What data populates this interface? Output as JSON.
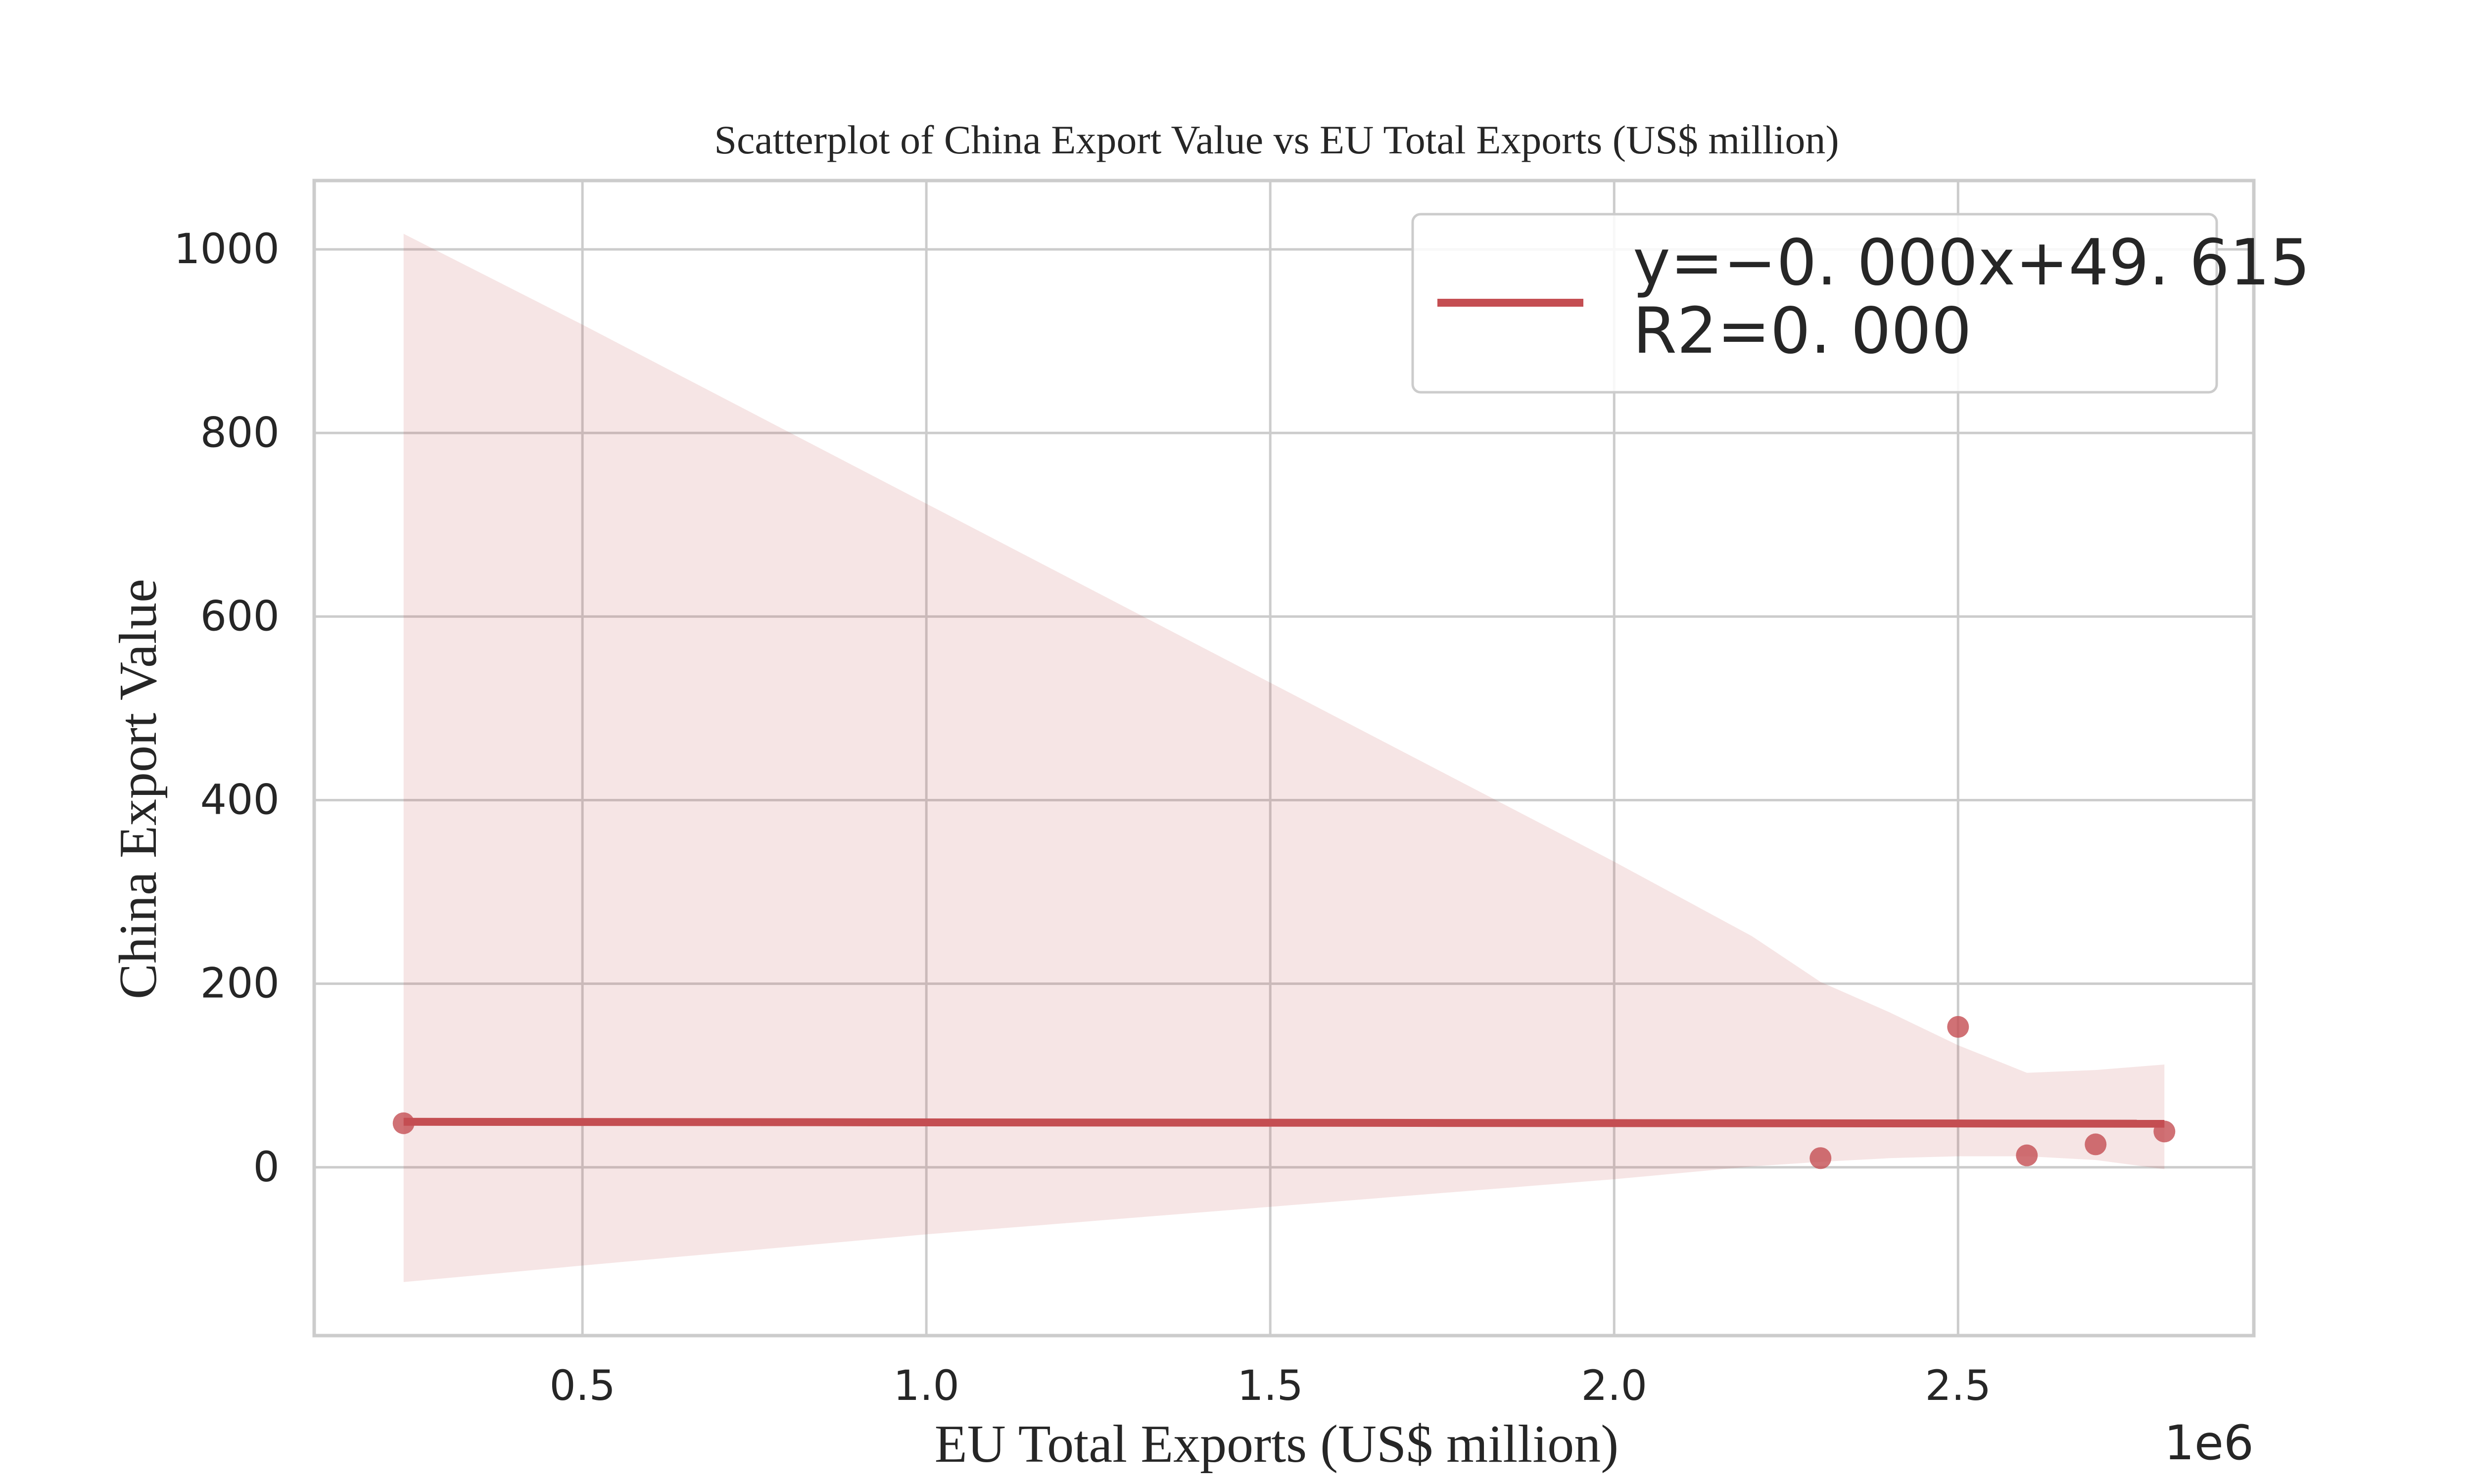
{
  "chart_data": {
    "type": "scatter",
    "title": "Scatterplot of China Export Value vs EU Total Exports (US$ million)",
    "xlabel": "EU Total Exports (US$ million)",
    "ylabel": "China Export Value",
    "x_offset_label": "1e6",
    "xlim": [
      110000,
      2930000
    ],
    "ylim": [
      -183.33,
      1075.0
    ],
    "xticks": [
      500000,
      1000000,
      1500000,
      2000000,
      2500000
    ],
    "xtick_labels": [
      "0.5",
      "1.0",
      "1.5",
      "2.0",
      "2.5"
    ],
    "yticks": [
      0,
      200,
      400,
      600,
      800,
      1000
    ],
    "ytick_labels": [
      "0",
      "200",
      "400",
      "600",
      "800",
      "1000"
    ],
    "grid": true,
    "legend_position": "top-right",
    "series": [
      {
        "name": "y=−0. 000x+49. 615\nR2=0. 000",
        "type": "scatter",
        "points": [
          {
            "x": 240000,
            "y": 48
          },
          {
            "x": 2300000,
            "y": 10
          },
          {
            "x": 2500000,
            "y": 153
          },
          {
            "x": 2600000,
            "y": 13
          },
          {
            "x": 2700000,
            "y": 25
          },
          {
            "x": 2800000,
            "y": 39
          }
        ]
      }
    ],
    "regression": {
      "x_range": [
        240000,
        2800000
      ],
      "y_start": 49.6,
      "y_end": 47.5
    },
    "confidence_band": {
      "x": [
        240000,
        500000,
        1000000,
        1500000,
        2000000,
        2200000,
        2300000,
        2400000,
        2500000,
        2600000,
        2700000,
        2800000
      ],
      "lower": [
        -125,
        -107,
        -73,
        -43,
        -13,
        1,
        6,
        10,
        12,
        12,
        8,
        -2
      ],
      "upper": [
        1017,
        918,
        723,
        528,
        333,
        252,
        202,
        169,
        133,
        103,
        106,
        112
      ]
    },
    "colors": {
      "accent": "#c44e52",
      "band": "#f5e2e3",
      "grid": "#cccccc",
      "frame": "#cccccc",
      "text": "#262626"
    }
  }
}
